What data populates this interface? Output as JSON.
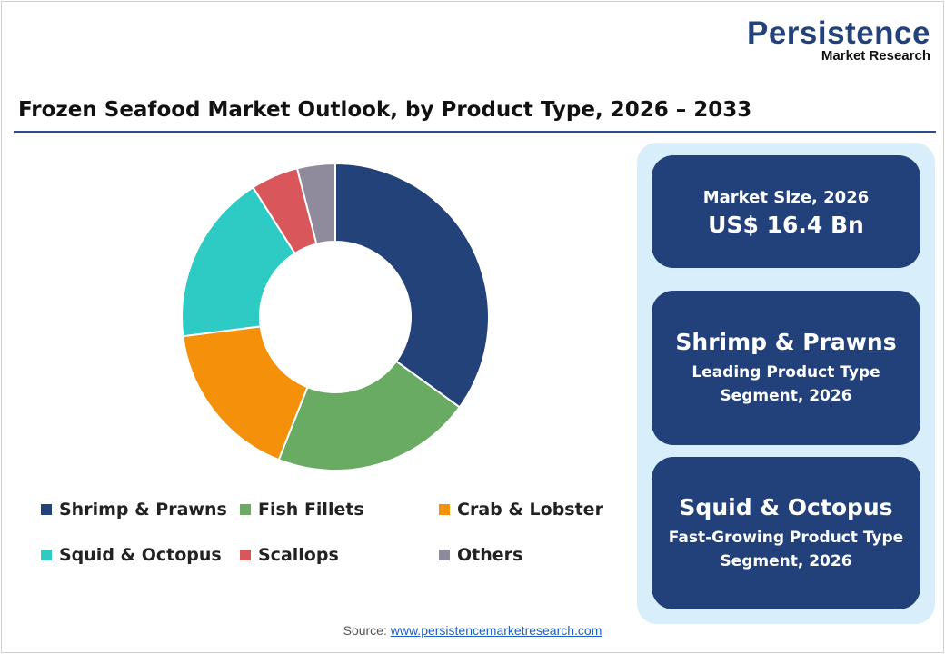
{
  "logo": {
    "line1": "Persistence",
    "line2": "Market Research"
  },
  "title": "Frozen Seafood Market Outlook, by Product Type, 2026 – 2033",
  "chart_data": {
    "type": "pie",
    "donut": true,
    "categories": [
      "Shrimp & Prawns",
      "Fish Fillets",
      "Crab & Lobster",
      "Squid & Octopus",
      "Scallops",
      "Others"
    ],
    "values": [
      35,
      21,
      17,
      18,
      5,
      4
    ],
    "unit": "%",
    "colors": [
      "#23427a",
      "#6aab64",
      "#f4900a",
      "#2ecac4",
      "#d9575a",
      "#8f8b9d"
    ],
    "legend_position": "bottom"
  },
  "panel": {
    "card1": {
      "label": "Market Size, 2026",
      "value": "US$ 16.4 Bn"
    },
    "card2": {
      "title": "Shrimp & Prawns",
      "line1": "Leading Product Type",
      "line2": "Segment, 2026"
    },
    "card3": {
      "title": "Squid & Octopus",
      "line1": "Fast-Growing Product Type",
      "line2": "Segment, 2026"
    }
  },
  "source": {
    "label": "Source:",
    "link": "www.persistencemarketresearch.com"
  }
}
